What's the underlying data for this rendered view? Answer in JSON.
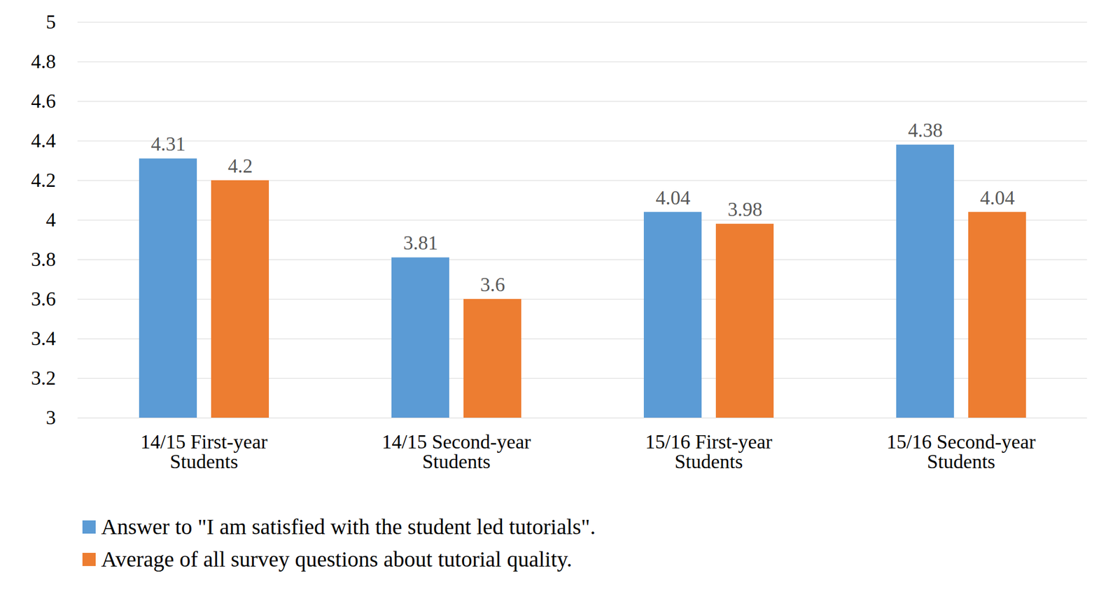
{
  "chart_data": {
    "type": "bar",
    "categories": [
      "14/15 First-year\nStudents",
      "14/15 Second-year\nStudents",
      "15/16 First-year\nStudents",
      "15/16 Second-year\nStudents"
    ],
    "series": [
      {
        "name": "Answer to \"I am satisfied with the student led tutorials\".",
        "color": "#5b9bd5",
        "values": [
          4.31,
          3.81,
          4.04,
          4.38
        ]
      },
      {
        "name": "Average of all survey questions about tutorial quality.",
        "color": "#ed7d31",
        "values": [
          4.2,
          3.6,
          3.98,
          4.04
        ]
      }
    ],
    "ylim": [
      3,
      5
    ],
    "yticks": [
      3,
      3.2,
      3.4,
      3.6,
      3.8,
      4,
      4.2,
      4.4,
      4.6,
      4.8,
      5
    ],
    "grid": true,
    "data_labels": true,
    "legend": "bottom-left"
  }
}
